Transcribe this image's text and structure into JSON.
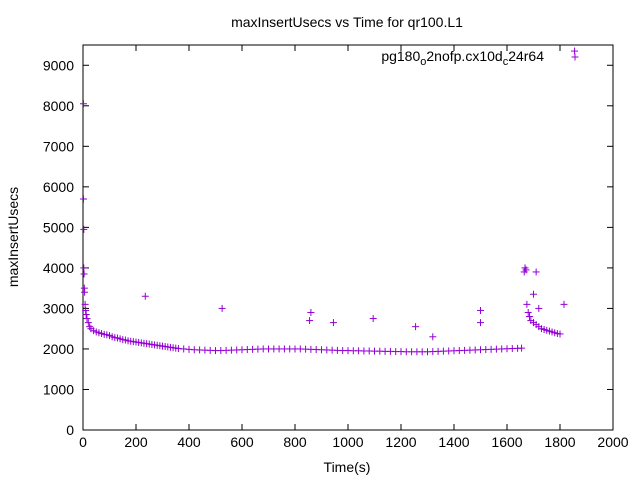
{
  "chart_data": {
    "type": "scatter",
    "title": "maxInsertUsecs vs Time for qr100.L1",
    "xlabel": "Time(s)",
    "ylabel": "maxInsertUsecs",
    "xlim": [
      0,
      2000
    ],
    "ylim": [
      0,
      9500
    ],
    "xticks": [
      0,
      200,
      400,
      600,
      800,
      1000,
      1200,
      1400,
      1600,
      1800,
      2000
    ],
    "yticks": [
      0,
      1000,
      2000,
      3000,
      4000,
      5000,
      6000,
      7000,
      8000,
      9000
    ],
    "grid": false,
    "legend_position": "top-right",
    "marker": "+",
    "color": "#9400d3",
    "series": [
      {
        "name": "pg180_o2nofp.cx10d_c24r64",
        "legend_parts": [
          {
            "text": "pg180",
            "sub": false
          },
          {
            "text": "o",
            "sub": true
          },
          {
            "text": "2nofp.cx10d",
            "sub": false
          },
          {
            "text": "c",
            "sub": true
          },
          {
            "text": "24r64",
            "sub": false
          }
        ],
        "points": [
          [
            2,
            8050
          ],
          [
            2,
            5700
          ],
          [
            3,
            4950
          ],
          [
            3,
            4000
          ],
          [
            4,
            3850
          ],
          [
            5,
            3500
          ],
          [
            6,
            3400
          ],
          [
            8,
            3100
          ],
          [
            10,
            2950
          ],
          [
            12,
            2850
          ],
          [
            15,
            2750
          ],
          [
            20,
            2650
          ],
          [
            25,
            2550
          ],
          [
            30,
            2500
          ],
          [
            40,
            2450
          ],
          [
            50,
            2420
          ],
          [
            60,
            2400
          ],
          [
            70,
            2380
          ],
          [
            80,
            2360
          ],
          [
            90,
            2350
          ],
          [
            100,
            2330
          ],
          [
            110,
            2300
          ],
          [
            120,
            2280
          ],
          [
            130,
            2270
          ],
          [
            140,
            2250
          ],
          [
            150,
            2230
          ],
          [
            160,
            2220
          ],
          [
            170,
            2200
          ],
          [
            180,
            2190
          ],
          [
            190,
            2180
          ],
          [
            200,
            2170
          ],
          [
            210,
            2160
          ],
          [
            220,
            2150
          ],
          [
            230,
            2140
          ],
          [
            240,
            2130
          ],
          [
            250,
            2120
          ],
          [
            260,
            2110
          ],
          [
            270,
            2100
          ],
          [
            280,
            2090
          ],
          [
            290,
            2080
          ],
          [
            300,
            2070
          ],
          [
            310,
            2060
          ],
          [
            320,
            2050
          ],
          [
            330,
            2040
          ],
          [
            340,
            2030
          ],
          [
            350,
            2020
          ],
          [
            360,
            2010
          ],
          [
            380,
            2000
          ],
          [
            400,
            1990
          ],
          [
            420,
            1980
          ],
          [
            440,
            1975
          ],
          [
            460,
            1970
          ],
          [
            480,
            1965
          ],
          [
            500,
            1960
          ],
          [
            520,
            1960
          ],
          [
            540,
            1965
          ],
          [
            560,
            1970
          ],
          [
            580,
            1975
          ],
          [
            600,
            1980
          ],
          [
            620,
            1985
          ],
          [
            640,
            1990
          ],
          [
            660,
            1995
          ],
          [
            680,
            2000
          ],
          [
            700,
            2000
          ],
          [
            720,
            2000
          ],
          [
            740,
            2000
          ],
          [
            760,
            2000
          ],
          [
            780,
            2000
          ],
          [
            800,
            2000
          ],
          [
            820,
            2000
          ],
          [
            840,
            1995
          ],
          [
            860,
            1990
          ],
          [
            880,
            1985
          ],
          [
            900,
            1980
          ],
          [
            920,
            1975
          ],
          [
            940,
            1970
          ],
          [
            960,
            1965
          ],
          [
            980,
            1960
          ],
          [
            1000,
            1960
          ],
          [
            1020,
            1955
          ],
          [
            1040,
            1955
          ],
          [
            1060,
            1950
          ],
          [
            1080,
            1950
          ],
          [
            1100,
            1945
          ],
          [
            1120,
            1945
          ],
          [
            1140,
            1940
          ],
          [
            1160,
            1940
          ],
          [
            1180,
            1935
          ],
          [
            1200,
            1935
          ],
          [
            1220,
            1930
          ],
          [
            1240,
            1930
          ],
          [
            1260,
            1930
          ],
          [
            1280,
            1930
          ],
          [
            1300,
            1930
          ],
          [
            1320,
            1935
          ],
          [
            1340,
            1940
          ],
          [
            1360,
            1945
          ],
          [
            1380,
            1950
          ],
          [
            1400,
            1955
          ],
          [
            1420,
            1960
          ],
          [
            1440,
            1965
          ],
          [
            1460,
            1970
          ],
          [
            1480,
            1975
          ],
          [
            1500,
            1980
          ],
          [
            1520,
            1985
          ],
          [
            1540,
            1990
          ],
          [
            1560,
            1995
          ],
          [
            1580,
            2000
          ],
          [
            1600,
            2005
          ],
          [
            1620,
            2010
          ],
          [
            1640,
            2015
          ],
          [
            1655,
            2020
          ],
          [
            1665,
            3900
          ],
          [
            1668,
            4000
          ],
          [
            1672,
            3950
          ],
          [
            1675,
            3100
          ],
          [
            1680,
            2900
          ],
          [
            1685,
            2800
          ],
          [
            1690,
            2700
          ],
          [
            1700,
            2650
          ],
          [
            1710,
            2600
          ],
          [
            1720,
            2550
          ],
          [
            1730,
            2500
          ],
          [
            1740,
            2480
          ],
          [
            1750,
            2460
          ],
          [
            1760,
            2440
          ],
          [
            1770,
            2420
          ],
          [
            1780,
            2400
          ],
          [
            1790,
            2380
          ],
          [
            1800,
            2370
          ],
          [
            235,
            3300
          ],
          [
            525,
            3000
          ],
          [
            860,
            2900
          ],
          [
            855,
            2700
          ],
          [
            945,
            2650
          ],
          [
            1095,
            2750
          ],
          [
            1255,
            2550
          ],
          [
            1320,
            2300
          ],
          [
            1500,
            2950
          ],
          [
            1500,
            2650
          ],
          [
            1700,
            3350
          ],
          [
            1710,
            3900
          ],
          [
            1720,
            3000
          ],
          [
            1815,
            3100
          ],
          [
            1855,
            9350
          ]
        ]
      }
    ]
  }
}
